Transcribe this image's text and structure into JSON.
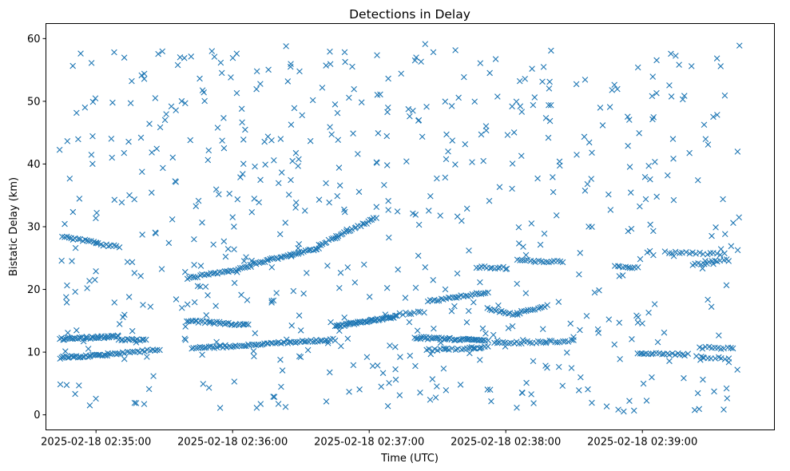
{
  "chart_data": {
    "type": "scatter",
    "title": "Detections in Delay",
    "xlabel": "Time (UTC)",
    "ylabel": "Bistatic Delay (km)",
    "x_ticks": [
      {
        "t": "2025-02-18T02:35:00",
        "label": "2025-02-18 02:35:00"
      },
      {
        "t": "2025-02-18T02:36:00",
        "label": "2025-02-18 02:36:00"
      },
      {
        "t": "2025-02-18T02:37:00",
        "label": "2025-02-18 02:37:00"
      },
      {
        "t": "2025-02-18T02:38:00",
        "label": "2025-02-18 02:38:00"
      },
      {
        "t": "2025-02-18T02:39:00",
        "label": "2025-02-18 02:39:00"
      }
    ],
    "xlim": [
      "2025-02-18T02:34:38",
      "2025-02-18T02:39:58"
    ],
    "y_ticks": [
      0,
      10,
      20,
      30,
      40,
      50,
      60
    ],
    "ylim": [
      -2.4,
      62.4
    ],
    "grid": false,
    "legend": "none",
    "marker": "x",
    "color": "#1f77b4",
    "tracks": [
      {
        "t0": "2025-02-18T02:34:44",
        "t1": "2025-02-18T02:35:10",
        "y0": 12.1,
        "y1": 12.5,
        "n": 40
      },
      {
        "t0": "2025-02-18T02:35:10",
        "t1": "2025-02-18T02:35:22",
        "y0": 11.9,
        "y1": 12.0,
        "n": 14
      },
      {
        "t0": "2025-02-18T02:34:44",
        "t1": "2025-02-18T02:35:05",
        "y0": 9.1,
        "y1": 9.6,
        "n": 30
      },
      {
        "t0": "2025-02-18T02:35:05",
        "t1": "2025-02-18T02:35:28",
        "y0": 9.7,
        "y1": 10.4,
        "n": 22
      },
      {
        "t0": "2025-02-18T02:34:45",
        "t1": "2025-02-18T02:35:00",
        "y0": 28.4,
        "y1": 27.5,
        "n": 16
      },
      {
        "t0": "2025-02-18T02:35:00",
        "t1": "2025-02-18T02:35:10",
        "y0": 27.3,
        "y1": 26.8,
        "n": 10
      },
      {
        "t0": "2025-02-18T02:35:40",
        "t1": "2025-02-18T02:36:07",
        "y0": 15.0,
        "y1": 14.3,
        "n": 32
      },
      {
        "t0": "2025-02-18T02:35:40",
        "t1": "2025-02-18T02:36:08",
        "y0": 21.8,
        "y1": 23.6,
        "n": 30
      },
      {
        "t0": "2025-02-18T02:35:42",
        "t1": "2025-02-18T02:36:45",
        "y0": 10.6,
        "y1": 12.0,
        "n": 70
      },
      {
        "t0": "2025-02-18T02:36:08",
        "t1": "2025-02-18T02:36:38",
        "y0": 24.0,
        "y1": 26.6,
        "n": 36
      },
      {
        "t0": "2025-02-18T02:36:38",
        "t1": "2025-02-18T02:37:03",
        "y0": 27.0,
        "y1": 31.4,
        "n": 30
      },
      {
        "t0": "2025-02-18T02:36:45",
        "t1": "2025-02-18T02:37:12",
        "y0": 14.1,
        "y1": 15.7,
        "n": 50
      },
      {
        "t0": "2025-02-18T02:37:12",
        "t1": "2025-02-18T02:37:24",
        "y0": 16.0,
        "y1": 16.4,
        "n": 10
      },
      {
        "t0": "2025-02-18T02:37:20",
        "t1": "2025-02-18T02:37:52",
        "y0": 12.3,
        "y1": 11.9,
        "n": 44
      },
      {
        "t0": "2025-02-18T02:37:25",
        "t1": "2025-02-18T02:37:52",
        "y0": 10.3,
        "y1": 10.8,
        "n": 22
      },
      {
        "t0": "2025-02-18T02:37:26",
        "t1": "2025-02-18T02:37:52",
        "y0": 18.1,
        "y1": 19.6,
        "n": 28
      },
      {
        "t0": "2025-02-18T02:37:47",
        "t1": "2025-02-18T02:38:00",
        "y0": 23.6,
        "y1": 23.4,
        "n": 12
      },
      {
        "t0": "2025-02-18T02:37:52",
        "t1": "2025-02-18T02:38:05",
        "y0": 17.0,
        "y1": 15.8,
        "n": 14
      },
      {
        "t0": "2025-02-18T02:38:05",
        "t1": "2025-02-18T02:38:18",
        "y0": 16.2,
        "y1": 17.4,
        "n": 14
      },
      {
        "t0": "2025-02-18T02:37:55",
        "t1": "2025-02-18T02:38:30",
        "y0": 11.4,
        "y1": 11.8,
        "n": 30
      },
      {
        "t0": "2025-02-18T02:38:05",
        "t1": "2025-02-18T02:38:25",
        "y0": 24.6,
        "y1": 24.4,
        "n": 18
      },
      {
        "t0": "2025-02-18T02:38:48",
        "t1": "2025-02-18T02:38:58",
        "y0": 23.6,
        "y1": 23.4,
        "n": 10
      },
      {
        "t0": "2025-02-18T02:38:58",
        "t1": "2025-02-18T02:39:20",
        "y0": 9.8,
        "y1": 9.6,
        "n": 20
      },
      {
        "t0": "2025-02-18T02:39:10",
        "t1": "2025-02-18T02:39:36",
        "y0": 25.9,
        "y1": 25.6,
        "n": 18
      },
      {
        "t0": "2025-02-18T02:39:22",
        "t1": "2025-02-18T02:39:38",
        "y0": 24.0,
        "y1": 24.7,
        "n": 14
      },
      {
        "t0": "2025-02-18T02:39:25",
        "t1": "2025-02-18T02:39:40",
        "y0": 10.7,
        "y1": 10.6,
        "n": 12
      },
      {
        "t0": "2025-02-18T02:39:24",
        "t1": "2025-02-18T02:39:38",
        "y0": 9.3,
        "y1": 9.0,
        "n": 10
      }
    ],
    "scatter_points": {
      "t_start": "2025-02-18T02:34:44",
      "t_end": "2025-02-18T02:39:43",
      "y_min": 0.5,
      "y_max": 59.5,
      "count": 620
    }
  }
}
